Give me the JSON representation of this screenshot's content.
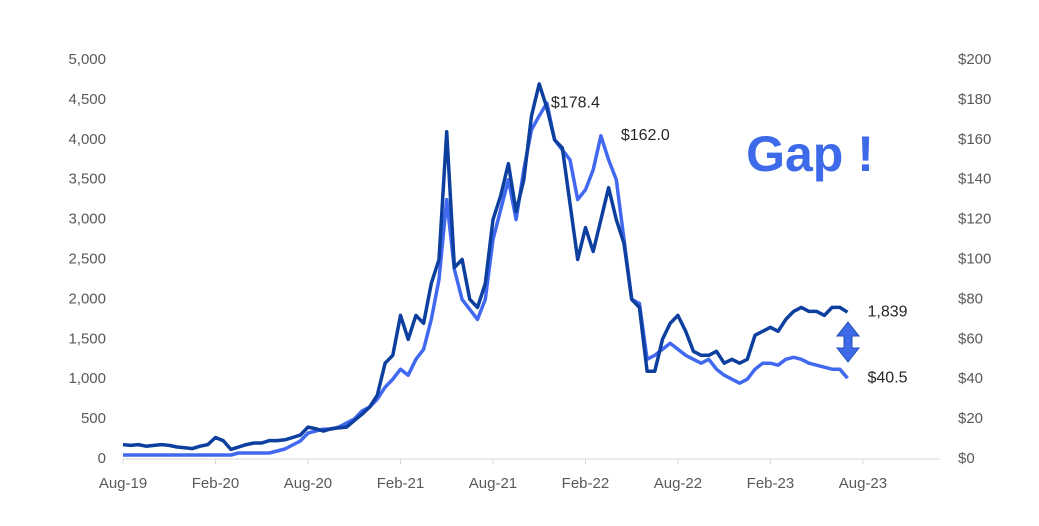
{
  "chart_data": {
    "type": "line",
    "annotation": "Gap !",
    "categories": [
      "Aug-19",
      null,
      null,
      null,
      null,
      null,
      null,
      null,
      null,
      null,
      null,
      null,
      "Feb-20",
      null,
      null,
      null,
      null,
      null,
      null,
      null,
      null,
      null,
      null,
      null,
      "Aug-20",
      null,
      null,
      null,
      null,
      null,
      null,
      null,
      null,
      null,
      null,
      null,
      "Feb-21",
      null,
      null,
      null,
      null,
      null,
      null,
      null,
      null,
      null,
      null,
      null,
      "Aug-21",
      null,
      null,
      null,
      null,
      null,
      null,
      null,
      null,
      null,
      null,
      null,
      "Feb-22",
      null,
      null,
      null,
      null,
      null,
      null,
      null,
      null,
      null,
      null,
      null,
      "Aug-22",
      null,
      null,
      null,
      null,
      null,
      null,
      null,
      null,
      null,
      null,
      null,
      "Feb-23",
      null,
      null,
      null,
      null,
      null,
      null,
      null,
      null,
      null,
      null,
      null,
      "Aug-23",
      null,
      null,
      null,
      null,
      null,
      null,
      null,
      null,
      null,
      null
    ],
    "series": [
      {
        "color": "#0d3f9e",
        "axis": "y",
        "values": [
          180,
          170,
          180,
          160,
          170,
          180,
          170,
          150,
          140,
          130,
          160,
          180,
          270,
          230,
          120,
          150,
          180,
          200,
          200,
          230,
          230,
          240,
          270,
          300,
          400,
          380,
          350,
          380,
          390,
          400,
          480,
          560,
          650,
          800,
          1200,
          1300,
          1800,
          1500,
          1800,
          1700,
          2200,
          2500,
          4100,
          2400,
          2500,
          2000,
          1900,
          2200,
          3000,
          3300,
          3700,
          3100,
          3500,
          4300,
          4700,
          4400,
          4000,
          3900,
          3200,
          2500,
          2900,
          2600,
          3000,
          3400,
          3000,
          2700,
          2000,
          1900,
          1100,
          1100,
          1500,
          1700,
          1800,
          1600,
          1350,
          1300,
          1300,
          1350,
          1200,
          1250,
          1200,
          1250,
          1550,
          1600,
          1650,
          1600,
          1750,
          1850,
          1900,
          1850,
          1850,
          1800,
          1900,
          1900,
          1839,
          null,
          null,
          null,
          null,
          null,
          null,
          null,
          null,
          null,
          null,
          null,
          null
        ],
        "value_labels": [
          null,
          null,
          null,
          null,
          null,
          null,
          null,
          null,
          null,
          null,
          null,
          null,
          null,
          null,
          null,
          null,
          null,
          null,
          null,
          null,
          null,
          null,
          null,
          null,
          null,
          null,
          null,
          null,
          null,
          null,
          null,
          null,
          null,
          null,
          null,
          null,
          null,
          null,
          null,
          null,
          null,
          null,
          null,
          null,
          null,
          null,
          null,
          null,
          null,
          null,
          null,
          null,
          null,
          null,
          null,
          null,
          null,
          null,
          null,
          null,
          null,
          null,
          null,
          null,
          null,
          null,
          null,
          null,
          null,
          null,
          null,
          null,
          null,
          null,
          null,
          null,
          null,
          null,
          null,
          null,
          null,
          null,
          null,
          null,
          null,
          null,
          null,
          null,
          null,
          null,
          null,
          null,
          null,
          null,
          "1,839",
          null,
          null,
          null,
          null,
          null,
          null,
          null,
          null,
          null,
          null,
          null,
          null
        ]
      },
      {
        "color": "#4169f0",
        "axis": "y2",
        "values": [
          2,
          2,
          2,
          2,
          2,
          2,
          2,
          2,
          2,
          2,
          2,
          2,
          2,
          2,
          2,
          3,
          3,
          3,
          3,
          3,
          4,
          5,
          7,
          9,
          13,
          14,
          15,
          15,
          16,
          18,
          20,
          24,
          26,
          30,
          36,
          40,
          45,
          42,
          50,
          55,
          70,
          90,
          130,
          95,
          80,
          75,
          70,
          80,
          110,
          125,
          140,
          120,
          145,
          165,
          172,
          178.4,
          160,
          155,
          150,
          130,
          135,
          145,
          162.0,
          150,
          140,
          110,
          80,
          78,
          50,
          52,
          55,
          58,
          55,
          52,
          50,
          48,
          50,
          45,
          42,
          40,
          38,
          40,
          45,
          48,
          48,
          47,
          50,
          51,
          50,
          48,
          47,
          46,
          45,
          45,
          40.5,
          null,
          null,
          null,
          null,
          null,
          null,
          null,
          null,
          null,
          null,
          null,
          null
        ],
        "value_labels": [
          null,
          null,
          null,
          null,
          null,
          null,
          null,
          null,
          null,
          null,
          null,
          null,
          null,
          null,
          null,
          null,
          null,
          null,
          null,
          null,
          null,
          null,
          null,
          null,
          null,
          null,
          null,
          null,
          null,
          null,
          null,
          null,
          null,
          null,
          null,
          null,
          null,
          null,
          null,
          null,
          null,
          null,
          null,
          null,
          null,
          null,
          null,
          null,
          null,
          null,
          null,
          null,
          null,
          null,
          null,
          "$178.4",
          null,
          null,
          null,
          null,
          null,
          null,
          "$162.0",
          null,
          null,
          null,
          null,
          null,
          null,
          null,
          null,
          null,
          null,
          null,
          null,
          null,
          null,
          null,
          null,
          null,
          null,
          null,
          null,
          null,
          null,
          null,
          null,
          null,
          null,
          null,
          null,
          null,
          null,
          null,
          "$40.5",
          null,
          null,
          null,
          null,
          null,
          null,
          null,
          null,
          null,
          null,
          null,
          null
        ]
      }
    ],
    "ylim": [
      0,
      5000
    ],
    "yticks": [
      0,
      500,
      {
        "value": 1000,
        "label": "1,000"
      },
      {
        "value": 1500,
        "label": "1,500"
      },
      {
        "value": 2000,
        "label": "2,000"
      },
      {
        "value": 2500,
        "label": "2,500"
      },
      {
        "value": 3000,
        "label": "3,000"
      },
      {
        "value": 3500,
        "label": "3,500"
      },
      {
        "value": 4000,
        "label": "4,000"
      },
      {
        "value": 4500,
        "label": "4,500"
      },
      {
        "value": 5000,
        "label": "5,000"
      }
    ],
    "y2lim": [
      0,
      200
    ],
    "y2ticks": [
      {
        "value": 0,
        "label": "$0"
      },
      {
        "value": 20,
        "label": "$20"
      },
      {
        "value": 40,
        "label": "$40"
      },
      {
        "value": 60,
        "label": "$60"
      },
      {
        "value": 80,
        "label": "$80"
      },
      {
        "value": 100,
        "label": "$100"
      },
      {
        "value": 120,
        "label": "$120"
      },
      {
        "value": 140,
        "label": "$140"
      },
      {
        "value": 160,
        "label": "$160"
      },
      {
        "value": 180,
        "label": "$180"
      },
      {
        "value": 200,
        "label": "$200"
      }
    ],
    "grid": false
  }
}
